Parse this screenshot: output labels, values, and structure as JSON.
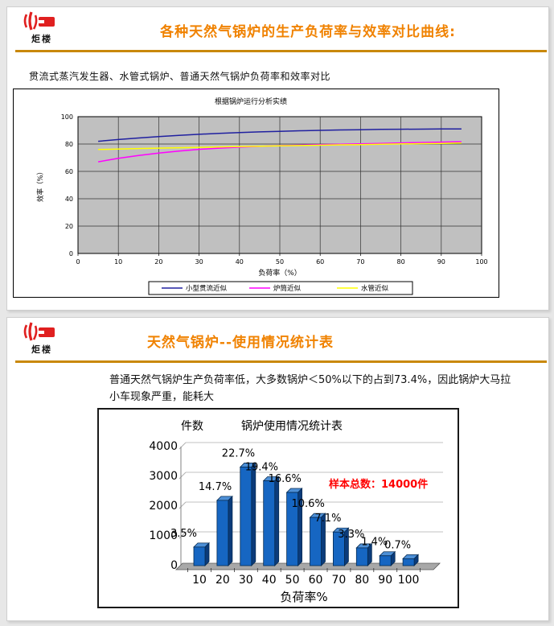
{
  "brand": {
    "name": "炬楼"
  },
  "colors": {
    "title_orange": "#F08200",
    "rule_gold": "#C9880A",
    "annotation_red": "#FF0000"
  },
  "slide1": {
    "title": "各种天然气锅炉的生产负荷率与效率对比曲线:",
    "subtitle": "贯流式蒸汽发生器、水管式锅炉、普通天然气锅炉负荷率和效率对比"
  },
  "slide2": {
    "title": "天然气锅炉--使用情况统计表",
    "body": "普通天然气锅炉生产负荷率低，大多数锅炉＜50%以下的占到73.4%，因此锅炉大马拉小车现象严重，能耗大"
  },
  "chart_data": [
    {
      "type": "line",
      "title": "根据锅炉运行分析实绩",
      "xlabel": "负荷率（%）",
      "ylabel": "效率（%）",
      "xlim": [
        0,
        100
      ],
      "ylim": [
        0,
        100
      ],
      "xticks": [
        0,
        10,
        20,
        30,
        40,
        50,
        60,
        70,
        80,
        90,
        100
      ],
      "yticks": [
        0,
        20,
        40,
        60,
        80,
        100
      ],
      "plot_bg": "#C0C0C0",
      "grid": true,
      "legend_position": "bottom",
      "series": [
        {
          "name": "小型贯流近似",
          "color": "#2020A0",
          "x": [
            5,
            10,
            15,
            20,
            25,
            30,
            35,
            40,
            45,
            50,
            55,
            60,
            65,
            70,
            75,
            80,
            85,
            90,
            95
          ],
          "y": [
            82,
            83.3,
            84.4,
            85.4,
            86.3,
            87.1,
            87.8,
            88.4,
            88.9,
            89.3,
            89.7,
            90,
            90.3,
            90.5,
            90.7,
            90.8,
            90.9,
            91,
            91
          ]
        },
        {
          "name": "炉筒近似",
          "color": "#FF00FF",
          "x": [
            5,
            10,
            15,
            20,
            25,
            30,
            35,
            40,
            45,
            50,
            55,
            60,
            65,
            70,
            75,
            80,
            85,
            90,
            95
          ],
          "y": [
            67,
            69.5,
            71.6,
            73.4,
            74.9,
            76.1,
            77,
            77.7,
            78.3,
            78.8,
            79.2,
            79.6,
            79.9,
            80.2,
            80.5,
            80.8,
            81.1,
            81.4,
            81.7
          ]
        },
        {
          "name": "水管近似",
          "color": "#FFFF00",
          "x": [
            5,
            10,
            15,
            20,
            25,
            30,
            35,
            40,
            45,
            50,
            55,
            60,
            65,
            70,
            75,
            80,
            85,
            90,
            95
          ],
          "y": [
            76,
            76.3,
            76.7,
            77,
            77.3,
            77.6,
            77.9,
            78.2,
            78.4,
            78.7,
            78.9,
            79.1,
            79.4,
            79.6,
            79.8,
            80.1,
            80.3,
            80.5,
            80.8
          ]
        }
      ]
    },
    {
      "type": "bar",
      "title": "锅炉使用情况统计表",
      "ylabel": "件数",
      "xlabel": "负荷率%",
      "categories": [
        10,
        20,
        30,
        40,
        50,
        60,
        70,
        80,
        90,
        100
      ],
      "values": [
        490,
        2058,
        3178,
        2716,
        2324,
        1484,
        994,
        462,
        196,
        98
      ],
      "labels": [
        "3.5%",
        "14.7%",
        "22.7%",
        "19.4%",
        "16.6%",
        "10.6%",
        "7.1%",
        "3.3%",
        "1.4%",
        "0.7%"
      ],
      "annotation": "样本总数：14000件",
      "ylim": [
        0,
        4000
      ],
      "yticks": [
        0,
        1000,
        2000,
        3000,
        4000
      ],
      "grid": true,
      "bar_color": "#1666C2",
      "bar_top_color": "#4D8FD6",
      "bar_side_color": "#0B3B7A"
    }
  ]
}
